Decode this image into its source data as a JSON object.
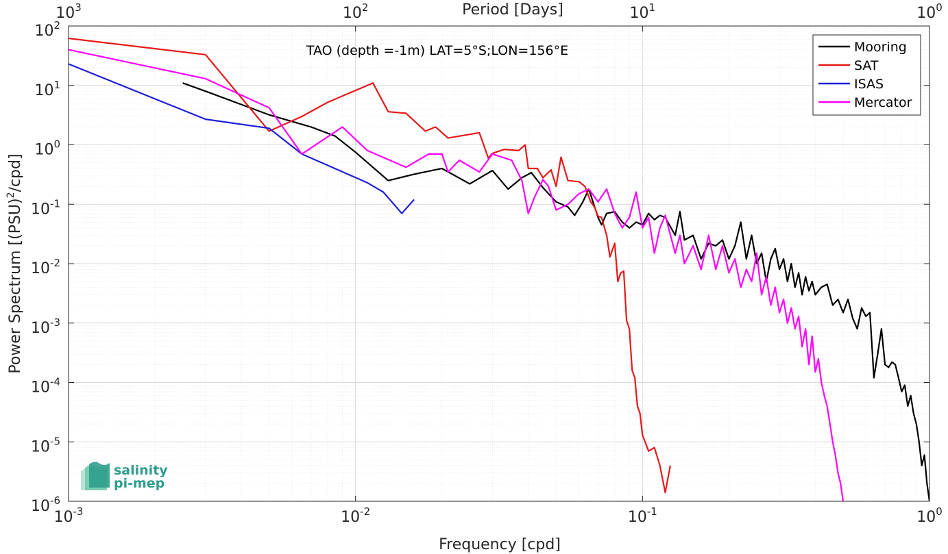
{
  "chart_data": {
    "type": "line",
    "title": "TAO (depth =-1m) LAT=5°S;LON=156°E",
    "xlabel": "Frequency [cpd]",
    "ylabel": "Power Spectrum [(PSU)",
    "ylabel_sup": "2",
    "ylabel_tail": "/cpd]",
    "x2label": "Period [Days]",
    "xscale": "log",
    "yscale": "log",
    "xlim": [
      0.001,
      1
    ],
    "ylim": [
      1e-06,
      100
    ],
    "grid": true,
    "legend_position": "top-right",
    "x_ticks": [
      {
        "base": "10",
        "exp": "-3",
        "value": 0.001
      },
      {
        "base": "10",
        "exp": "-2",
        "value": 0.01
      },
      {
        "base": "10",
        "exp": "-1",
        "value": 0.1
      },
      {
        "base": "10",
        "exp": "0",
        "value": 1
      }
    ],
    "x2_ticks": [
      {
        "base": "10",
        "exp": "3",
        "value": 0.001
      },
      {
        "base": "10",
        "exp": "2",
        "value": 0.01
      },
      {
        "base": "10",
        "exp": "1",
        "value": 0.1
      },
      {
        "base": "10",
        "exp": "0",
        "value": 1
      }
    ],
    "y_ticks": [
      {
        "base": "10",
        "exp": "2",
        "value": 100
      },
      {
        "base": "10",
        "exp": "1",
        "value": 10
      },
      {
        "base": "10",
        "exp": "0",
        "value": 1
      },
      {
        "base": "10",
        "exp": "-1",
        "value": 0.1
      },
      {
        "base": "10",
        "exp": "-2",
        "value": 0.01
      },
      {
        "base": "10",
        "exp": "-3",
        "value": 0.001
      },
      {
        "base": "10",
        "exp": "-4",
        "value": 0.0001
      },
      {
        "base": "10",
        "exp": "-5",
        "value": 1e-05
      },
      {
        "base": "10",
        "exp": "-6",
        "value": 1e-06
      }
    ],
    "series": [
      {
        "name": "Mooring",
        "color": "#000000",
        "points": [
          [
            0.0025,
            11
          ],
          [
            0.003,
            8
          ],
          [
            0.005,
            3.2
          ],
          [
            0.007,
            2
          ],
          [
            0.0085,
            1.4
          ],
          [
            0.01,
            0.75
          ],
          [
            0.012,
            0.35
          ],
          [
            0.013,
            0.25
          ],
          [
            0.016,
            0.32
          ],
          [
            0.02,
            0.4
          ],
          [
            0.025,
            0.22
          ],
          [
            0.03,
            0.37
          ],
          [
            0.034,
            0.18
          ],
          [
            0.038,
            0.28
          ],
          [
            0.041,
            0.34
          ],
          [
            0.045,
            0.19
          ],
          [
            0.05,
            0.11
          ],
          [
            0.055,
            0.09
          ],
          [
            0.058,
            0.065
          ],
          [
            0.062,
            0.11
          ],
          [
            0.065,
            0.18
          ],
          [
            0.07,
            0.06
          ],
          [
            0.072,
            0.045
          ],
          [
            0.075,
            0.07
          ],
          [
            0.08,
            0.075
          ],
          [
            0.085,
            0.05
          ],
          [
            0.09,
            0.04
          ],
          [
            0.095,
            0.05
          ],
          [
            0.1,
            0.045
          ],
          [
            0.105,
            0.07
          ],
          [
            0.11,
            0.055
          ],
          [
            0.115,
            0.065
          ],
          [
            0.12,
            0.06
          ],
          [
            0.13,
            0.03
          ],
          [
            0.135,
            0.075
          ],
          [
            0.14,
            0.025
          ],
          [
            0.15,
            0.03
          ],
          [
            0.16,
            0.012
          ],
          [
            0.17,
            0.022
          ],
          [
            0.18,
            0.02
          ],
          [
            0.19,
            0.025
          ],
          [
            0.2,
            0.012
          ],
          [
            0.21,
            0.02
          ],
          [
            0.22,
            0.05
          ],
          [
            0.23,
            0.012
          ],
          [
            0.24,
            0.03
          ],
          [
            0.25,
            0.01
          ],
          [
            0.26,
            0.015
          ],
          [
            0.27,
            0.005
          ],
          [
            0.28,
            0.012
          ],
          [
            0.29,
            0.018
          ],
          [
            0.3,
            0.008
          ],
          [
            0.31,
            0.012
          ],
          [
            0.32,
            0.005
          ],
          [
            0.33,
            0.01
          ],
          [
            0.34,
            0.004
          ],
          [
            0.35,
            0.007
          ],
          [
            0.36,
            0.003
          ],
          [
            0.37,
            0.006
          ],
          [
            0.38,
            0.0035
          ],
          [
            0.39,
            0.005
          ],
          [
            0.4,
            0.003
          ],
          [
            0.42,
            0.004
          ],
          [
            0.44,
            0.0045
          ],
          [
            0.46,
            0.002
          ],
          [
            0.48,
            0.0025
          ],
          [
            0.5,
            0.0015
          ],
          [
            0.52,
            0.0025
          ],
          [
            0.54,
            0.0012
          ],
          [
            0.56,
            0.0008
          ],
          [
            0.58,
            0.0018
          ],
          [
            0.6,
            0.0013
          ],
          [
            0.62,
            0.0015
          ],
          [
            0.64,
            0.00012
          ],
          [
            0.66,
            0.0003
          ],
          [
            0.68,
            0.0008
          ],
          [
            0.7,
            0.0002
          ],
          [
            0.72,
            0.00018
          ],
          [
            0.74,
            0.00022
          ],
          [
            0.76,
            0.0002
          ],
          [
            0.78,
            0.00012
          ],
          [
            0.8,
            7e-05
          ],
          [
            0.82,
            9e-05
          ],
          [
            0.84,
            4e-05
          ],
          [
            0.86,
            6e-05
          ],
          [
            0.88,
            3e-05
          ],
          [
            0.9,
            2e-05
          ],
          [
            0.92,
            1e-05
          ],
          [
            0.94,
            4e-06
          ],
          [
            0.96,
            6e-06
          ],
          [
            0.98,
            2e-06
          ],
          [
            1.0,
            1e-06
          ]
        ]
      },
      {
        "name": "SAT",
        "color": "#e61919",
        "points": [
          [
            0.001,
            62
          ],
          [
            0.003,
            33
          ],
          [
            0.005,
            1.7
          ],
          [
            0.0065,
            3
          ],
          [
            0.008,
            5.2
          ],
          [
            0.0115,
            11
          ],
          [
            0.013,
            3.6
          ],
          [
            0.015,
            3.4
          ],
          [
            0.0175,
            1.7
          ],
          [
            0.019,
            2
          ],
          [
            0.021,
            1.3
          ],
          [
            0.027,
            1.6
          ],
          [
            0.029,
            0.6
          ],
          [
            0.03,
            0.72
          ],
          [
            0.033,
            0.84
          ],
          [
            0.037,
            0.8
          ],
          [
            0.039,
            1
          ],
          [
            0.04,
            0.4
          ],
          [
            0.043,
            0.4
          ],
          [
            0.045,
            0.28
          ],
          [
            0.048,
            0.38
          ],
          [
            0.05,
            0.2
          ],
          [
            0.052,
            0.62
          ],
          [
            0.055,
            0.25
          ],
          [
            0.06,
            0.24
          ],
          [
            0.063,
            0.2
          ],
          [
            0.066,
            0.11
          ],
          [
            0.068,
            0.09
          ],
          [
            0.07,
            0.063
          ],
          [
            0.072,
            0.06
          ],
          [
            0.075,
            0.03
          ],
          [
            0.077,
            0.013
          ],
          [
            0.08,
            0.022
          ],
          [
            0.082,
            0.005
          ],
          [
            0.084,
            0.007
          ],
          [
            0.086,
            0.0075
          ],
          [
            0.088,
            0.0011
          ],
          [
            0.09,
            0.0008
          ],
          [
            0.092,
            0.00016
          ],
          [
            0.094,
            0.00012
          ],
          [
            0.096,
            4e-05
          ],
          [
            0.098,
            3e-05
          ],
          [
            0.1,
            1.3e-05
          ],
          [
            0.105,
            7e-06
          ],
          [
            0.11,
            8e-06
          ],
          [
            0.115,
            4e-06
          ],
          [
            0.12,
            1.4e-06
          ],
          [
            0.125,
            4e-06
          ]
        ]
      },
      {
        "name": "ISAS",
        "color": "#1f1fd8",
        "points": [
          [
            0.001,
            23
          ],
          [
            0.003,
            2.7
          ],
          [
            0.005,
            1.9
          ],
          [
            0.0065,
            0.7
          ],
          [
            0.011,
            0.23
          ],
          [
            0.0125,
            0.16
          ],
          [
            0.0145,
            0.07
          ],
          [
            0.016,
            0.12
          ]
        ]
      },
      {
        "name": "Mercator",
        "color": "#ff00ff",
        "points": [
          [
            0.001,
            40
          ],
          [
            0.003,
            13
          ],
          [
            0.005,
            4.2
          ],
          [
            0.0065,
            0.7
          ],
          [
            0.009,
            2
          ],
          [
            0.011,
            0.8
          ],
          [
            0.015,
            0.42
          ],
          [
            0.018,
            0.7
          ],
          [
            0.02,
            0.7
          ],
          [
            0.021,
            0.35
          ],
          [
            0.023,
            0.55
          ],
          [
            0.027,
            0.35
          ],
          [
            0.03,
            0.7
          ],
          [
            0.035,
            0.55
          ],
          [
            0.038,
            0.25
          ],
          [
            0.04,
            0.07
          ],
          [
            0.042,
            0.13
          ],
          [
            0.045,
            0.26
          ],
          [
            0.047,
            0.2
          ],
          [
            0.05,
            0.08
          ],
          [
            0.055,
            0.1
          ],
          [
            0.06,
            0.15
          ],
          [
            0.065,
            0.18
          ],
          [
            0.07,
            0.11
          ],
          [
            0.075,
            0.18
          ],
          [
            0.08,
            0.07
          ],
          [
            0.085,
            0.04
          ],
          [
            0.09,
            0.06
          ],
          [
            0.095,
            0.16
          ],
          [
            0.1,
            0.04
          ],
          [
            0.105,
            0.06
          ],
          [
            0.11,
            0.015
          ],
          [
            0.115,
            0.04
          ],
          [
            0.12,
            0.065
          ],
          [
            0.13,
            0.015
          ],
          [
            0.135,
            0.03
          ],
          [
            0.14,
            0.01
          ],
          [
            0.15,
            0.02
          ],
          [
            0.16,
            0.008
          ],
          [
            0.17,
            0.03
          ],
          [
            0.18,
            0.008
          ],
          [
            0.19,
            0.02
          ],
          [
            0.2,
            0.007
          ],
          [
            0.21,
            0.012
          ],
          [
            0.22,
            0.004
          ],
          [
            0.23,
            0.008
          ],
          [
            0.24,
            0.005
          ],
          [
            0.25,
            0.015
          ],
          [
            0.26,
            0.003
          ],
          [
            0.27,
            0.006
          ],
          [
            0.28,
            0.002
          ],
          [
            0.29,
            0.004
          ],
          [
            0.3,
            0.0015
          ],
          [
            0.31,
            0.0025
          ],
          [
            0.32,
            0.001
          ],
          [
            0.33,
            0.0018
          ],
          [
            0.34,
            0.0008
          ],
          [
            0.35,
            0.0013
          ],
          [
            0.36,
            0.0004
          ],
          [
            0.37,
            0.0008
          ],
          [
            0.38,
            0.0002
          ],
          [
            0.39,
            0.0006
          ],
          [
            0.4,
            0.00015
          ],
          [
            0.41,
            0.00025
          ],
          [
            0.42,
            0.0001
          ],
          [
            0.43,
            6e-05
          ],
          [
            0.44,
            4e-05
          ],
          [
            0.45,
            2e-05
          ],
          [
            0.46,
            1e-05
          ],
          [
            0.47,
            6e-06
          ],
          [
            0.48,
            3e-06
          ],
          [
            0.49,
            2e-06
          ],
          [
            0.5,
            1e-06
          ]
        ]
      }
    ]
  },
  "logo": {
    "line1": "salinity",
    "line2": "pi-mep",
    "color": "#2e9e8c"
  }
}
